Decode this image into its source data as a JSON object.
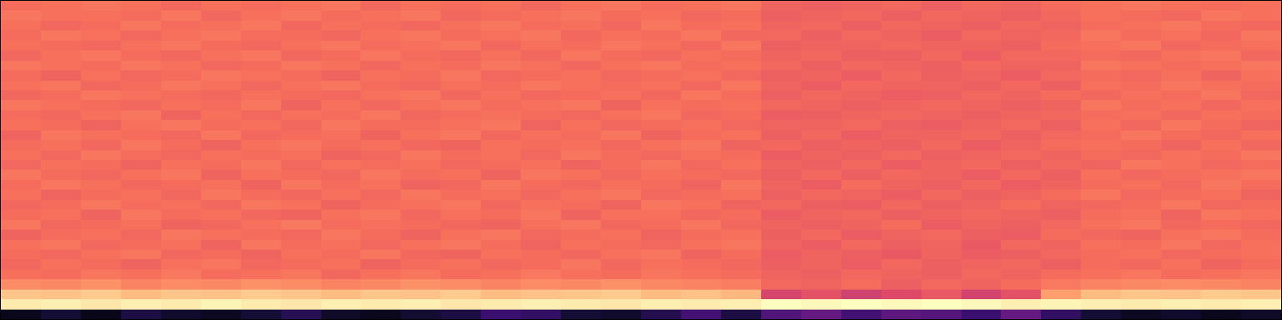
{
  "chart_data": {
    "type": "heatmap",
    "tick_labels": false,
    "color_range": [
      0,
      1
    ],
    "z": [
      [
        0.05,
        0.1,
        0.04,
        0.12,
        0.08,
        0.06,
        0.1,
        0.15,
        0.07,
        0.05,
        0.09,
        0.12,
        0.2,
        0.18,
        0.1,
        0.08,
        0.14,
        0.22,
        0.12,
        0.25,
        0.3,
        0.22,
        0.28,
        0.26,
        0.2,
        0.3,
        0.18,
        0.1,
        0.06,
        0.08,
        0.05,
        0.07
      ],
      [
        0.96,
        0.97,
        0.95,
        0.97,
        0.96,
        0.98,
        0.96,
        0.95,
        0.97,
        0.96,
        0.97,
        0.95,
        0.96,
        0.97,
        0.96,
        0.95,
        0.97,
        0.96,
        0.97,
        1.0,
        0.99,
        1.0,
        0.99,
        1.0,
        0.99,
        0.97,
        0.98,
        0.97,
        0.96,
        0.97,
        0.96,
        0.97
      ],
      [
        0.88,
        0.87,
        0.89,
        0.86,
        0.88,
        0.87,
        0.89,
        0.88,
        0.86,
        0.88,
        0.87,
        0.89,
        0.86,
        0.87,
        0.88,
        0.89,
        0.86,
        0.87,
        0.85,
        0.58,
        0.62,
        0.56,
        0.6,
        0.64,
        0.57,
        0.62,
        0.8,
        0.86,
        0.88,
        0.87,
        0.89,
        0.88
      ],
      [
        0.76,
        0.75,
        0.77,
        0.74,
        0.76,
        0.75,
        0.77,
        0.76,
        0.74,
        0.75,
        0.77,
        0.76,
        0.74,
        0.76,
        0.75,
        0.77,
        0.75,
        0.74,
        0.73,
        0.68,
        0.67,
        0.69,
        0.66,
        0.68,
        0.67,
        0.69,
        0.72,
        0.74,
        0.75,
        0.76,
        0.75,
        0.74
      ],
      [
        0.7,
        0.69,
        0.71,
        0.7,
        0.72,
        0.69,
        0.7,
        0.71,
        0.68,
        0.7,
        0.71,
        0.69,
        0.7,
        0.72,
        0.7,
        0.69,
        0.71,
        0.7,
        0.69,
        0.67,
        0.66,
        0.68,
        0.67,
        0.66,
        0.68,
        0.67,
        0.69,
        0.7,
        0.71,
        0.69,
        0.7,
        0.71
      ],
      [
        0.68,
        0.7,
        0.69,
        0.67,
        0.7,
        0.71,
        0.68,
        0.69,
        0.7,
        0.67,
        0.69,
        0.7,
        0.68,
        0.69,
        0.71,
        0.68,
        0.7,
        0.69,
        0.68,
        0.66,
        0.67,
        0.65,
        0.68,
        0.66,
        0.67,
        0.68,
        0.66,
        0.69,
        0.68,
        0.7,
        0.67,
        0.69
      ],
      [
        0.69,
        0.68,
        0.7,
        0.71,
        0.68,
        0.69,
        0.67,
        0.7,
        0.69,
        0.71,
        0.68,
        0.67,
        0.7,
        0.69,
        0.68,
        0.7,
        0.71,
        0.67,
        0.69,
        0.65,
        0.67,
        0.66,
        0.64,
        0.67,
        0.65,
        0.66,
        0.68,
        0.69,
        0.7,
        0.68,
        0.69,
        0.7
      ],
      [
        0.7,
        0.71,
        0.68,
        0.69,
        0.7,
        0.67,
        0.71,
        0.69,
        0.7,
        0.68,
        0.7,
        0.71,
        0.69,
        0.67,
        0.7,
        0.69,
        0.68,
        0.7,
        0.71,
        0.67,
        0.65,
        0.68,
        0.66,
        0.67,
        0.64,
        0.68,
        0.67,
        0.7,
        0.69,
        0.71,
        0.68,
        0.7
      ],
      [
        0.67,
        0.69,
        0.7,
        0.68,
        0.71,
        0.7,
        0.69,
        0.68,
        0.71,
        0.69,
        0.67,
        0.7,
        0.71,
        0.68,
        0.69,
        0.7,
        0.67,
        0.69,
        0.7,
        0.66,
        0.68,
        0.65,
        0.67,
        0.68,
        0.66,
        0.65,
        0.69,
        0.68,
        0.67,
        0.7,
        0.71,
        0.69
      ],
      [
        0.71,
        0.68,
        0.69,
        0.7,
        0.67,
        0.68,
        0.7,
        0.72,
        0.69,
        0.7,
        0.69,
        0.68,
        0.67,
        0.7,
        0.71,
        0.68,
        0.69,
        0.71,
        0.68,
        0.67,
        0.66,
        0.67,
        0.69,
        0.65,
        0.67,
        0.66,
        0.68,
        0.7,
        0.71,
        0.68,
        0.69,
        0.68
      ],
      [
        0.69,
        0.7,
        0.67,
        0.71,
        0.69,
        0.7,
        0.68,
        0.67,
        0.7,
        0.71,
        0.68,
        0.7,
        0.69,
        0.71,
        0.67,
        0.7,
        0.7,
        0.68,
        0.69,
        0.65,
        0.67,
        0.68,
        0.66,
        0.67,
        0.68,
        0.67,
        0.66,
        0.69,
        0.7,
        0.67,
        0.71,
        0.7
      ],
      [
        0.68,
        0.69,
        0.71,
        0.69,
        0.7,
        0.68,
        0.71,
        0.7,
        0.67,
        0.69,
        0.7,
        0.71,
        0.68,
        0.7,
        0.69,
        0.67,
        0.71,
        0.7,
        0.67,
        0.68,
        0.66,
        0.65,
        0.68,
        0.66,
        0.67,
        0.69,
        0.67,
        0.68,
        0.69,
        0.71,
        0.68,
        0.69
      ],
      [
        0.7,
        0.67,
        0.69,
        0.7,
        0.68,
        0.71,
        0.69,
        0.68,
        0.7,
        0.68,
        0.71,
        0.69,
        0.7,
        0.68,
        0.7,
        0.71,
        0.68,
        0.69,
        0.7,
        0.66,
        0.68,
        0.67,
        0.65,
        0.68,
        0.66,
        0.67,
        0.69,
        0.71,
        0.68,
        0.69,
        0.7,
        0.67
      ],
      [
        0.69,
        0.71,
        0.7,
        0.68,
        0.69,
        0.7,
        0.67,
        0.71,
        0.69,
        0.7,
        0.67,
        0.68,
        0.71,
        0.69,
        0.68,
        0.7,
        0.69,
        0.67,
        0.71,
        0.67,
        0.65,
        0.69,
        0.67,
        0.66,
        0.68,
        0.65,
        0.67,
        0.69,
        0.7,
        0.68,
        0.71,
        0.69
      ],
      [
        0.71,
        0.69,
        0.68,
        0.7,
        0.71,
        0.67,
        0.7,
        0.69,
        0.68,
        0.71,
        0.69,
        0.7,
        0.67,
        0.71,
        0.7,
        0.68,
        0.7,
        0.69,
        0.68,
        0.66,
        0.68,
        0.66,
        0.68,
        0.67,
        0.65,
        0.68,
        0.66,
        0.7,
        0.68,
        0.69,
        0.7,
        0.71
      ],
      [
        0.68,
        0.7,
        0.69,
        0.67,
        0.7,
        0.69,
        0.71,
        0.68,
        0.7,
        0.69,
        0.7,
        0.68,
        0.69,
        0.7,
        0.67,
        0.69,
        0.71,
        0.68,
        0.7,
        0.67,
        0.66,
        0.68,
        0.65,
        0.67,
        0.68,
        0.66,
        0.68,
        0.67,
        0.71,
        0.7,
        0.68,
        0.69
      ],
      [
        0.7,
        0.68,
        0.71,
        0.69,
        0.68,
        0.7,
        0.69,
        0.7,
        0.67,
        0.68,
        0.71,
        0.69,
        0.7,
        0.68,
        0.71,
        0.69,
        0.68,
        0.7,
        0.69,
        0.65,
        0.67,
        0.66,
        0.68,
        0.66,
        0.67,
        0.68,
        0.67,
        0.69,
        0.68,
        0.7,
        0.69,
        0.71
      ],
      [
        0.69,
        0.7,
        0.68,
        0.71,
        0.69,
        0.67,
        0.7,
        0.71,
        0.69,
        0.7,
        0.68,
        0.67,
        0.7,
        0.69,
        0.7,
        0.68,
        0.7,
        0.71,
        0.67,
        0.68,
        0.66,
        0.67,
        0.66,
        0.68,
        0.65,
        0.67,
        0.69,
        0.7,
        0.69,
        0.67,
        0.7,
        0.68
      ],
      [
        0.67,
        0.71,
        0.7,
        0.69,
        0.68,
        0.71,
        0.68,
        0.69,
        0.7,
        0.67,
        0.7,
        0.71,
        0.68,
        0.7,
        0.69,
        0.71,
        0.67,
        0.69,
        0.7,
        0.66,
        0.68,
        0.65,
        0.67,
        0.67,
        0.68,
        0.66,
        0.68,
        0.69,
        0.71,
        0.69,
        0.68,
        0.7
      ],
      [
        0.7,
        0.69,
        0.67,
        0.7,
        0.71,
        0.69,
        0.7,
        0.68,
        0.71,
        0.69,
        0.69,
        0.7,
        0.71,
        0.67,
        0.7,
        0.68,
        0.69,
        0.7,
        0.68,
        0.67,
        0.67,
        0.68,
        0.66,
        0.65,
        0.67,
        0.68,
        0.66,
        0.7,
        0.68,
        0.71,
        0.69,
        0.67
      ],
      [
        0.69,
        0.68,
        0.7,
        0.71,
        0.67,
        0.7,
        0.68,
        0.7,
        0.69,
        0.71,
        0.68,
        0.69,
        0.7,
        0.69,
        0.68,
        0.7,
        0.71,
        0.68,
        0.69,
        0.65,
        0.66,
        0.67,
        0.68,
        0.67,
        0.66,
        0.67,
        0.68,
        0.69,
        0.7,
        0.68,
        0.7,
        0.69
      ],
      [
        0.71,
        0.7,
        0.69,
        0.68,
        0.7,
        0.69,
        0.71,
        0.67,
        0.7,
        0.68,
        0.7,
        0.71,
        0.69,
        0.7,
        0.71,
        0.67,
        0.7,
        0.69,
        0.7,
        0.68,
        0.67,
        0.66,
        0.67,
        0.68,
        0.67,
        0.66,
        0.67,
        0.71,
        0.69,
        0.7,
        0.68,
        0.7
      ],
      [
        0.68,
        0.69,
        0.71,
        0.7,
        0.69,
        0.68,
        0.7,
        0.69,
        0.68,
        0.7,
        0.71,
        0.68,
        0.7,
        0.68,
        0.69,
        0.7,
        0.68,
        0.71,
        0.69,
        0.66,
        0.68,
        0.67,
        0.65,
        0.66,
        0.68,
        0.67,
        0.69,
        0.68,
        0.7,
        0.69,
        0.71,
        0.68
      ],
      [
        0.7,
        0.71,
        0.68,
        0.69,
        0.71,
        0.7,
        0.68,
        0.7,
        0.71,
        0.69,
        0.68,
        0.7,
        0.69,
        0.71,
        0.7,
        0.69,
        0.7,
        0.68,
        0.71,
        0.67,
        0.65,
        0.68,
        0.67,
        0.67,
        0.66,
        0.68,
        0.66,
        0.7,
        0.69,
        0.71,
        0.7,
        0.69
      ],
      [
        0.69,
        0.67,
        0.7,
        0.68,
        0.69,
        0.71,
        0.7,
        0.69,
        0.67,
        0.7,
        0.69,
        0.71,
        0.68,
        0.69,
        0.7,
        0.68,
        0.69,
        0.7,
        0.68,
        0.66,
        0.67,
        0.65,
        0.68,
        0.66,
        0.67,
        0.65,
        0.68,
        0.69,
        0.68,
        0.7,
        0.67,
        0.7
      ],
      [
        0.71,
        0.7,
        0.69,
        0.71,
        0.7,
        0.68,
        0.69,
        0.71,
        0.7,
        0.68,
        0.7,
        0.69,
        0.71,
        0.7,
        0.68,
        0.7,
        0.71,
        0.69,
        0.7,
        0.68,
        0.66,
        0.68,
        0.67,
        0.66,
        0.68,
        0.67,
        0.67,
        0.71,
        0.7,
        0.69,
        0.7,
        0.71
      ],
      [
        0.68,
        0.7,
        0.71,
        0.69,
        0.68,
        0.7,
        0.71,
        0.68,
        0.69,
        0.71,
        0.69,
        0.68,
        0.7,
        0.68,
        0.71,
        0.69,
        0.68,
        0.7,
        0.69,
        0.67,
        0.68,
        0.66,
        0.66,
        0.68,
        0.65,
        0.68,
        0.68,
        0.69,
        0.68,
        0.7,
        0.71,
        0.68
      ],
      [
        0.7,
        0.69,
        0.68,
        0.7,
        0.71,
        0.69,
        0.68,
        0.7,
        0.71,
        0.69,
        0.7,
        0.71,
        0.68,
        0.7,
        0.69,
        0.71,
        0.7,
        0.68,
        0.71,
        0.66,
        0.67,
        0.67,
        0.68,
        0.67,
        0.67,
        0.66,
        0.69,
        0.7,
        0.71,
        0.68,
        0.69,
        0.7
      ],
      [
        0.69,
        0.71,
        0.7,
        0.68,
        0.7,
        0.71,
        0.69,
        0.69,
        0.68,
        0.7,
        0.71,
        0.69,
        0.7,
        0.71,
        0.68,
        0.7,
        0.69,
        0.71,
        0.68,
        0.68,
        0.66,
        0.68,
        0.67,
        0.65,
        0.68,
        0.67,
        0.68,
        0.71,
        0.69,
        0.7,
        0.68,
        0.71
      ],
      [
        0.7,
        0.68,
        0.69,
        0.71,
        0.69,
        0.7,
        0.71,
        0.68,
        0.7,
        0.69,
        0.68,
        0.7,
        0.71,
        0.69,
        0.7,
        0.68,
        0.71,
        0.69,
        0.7,
        0.67,
        0.68,
        0.66,
        0.68,
        0.67,
        0.66,
        0.68,
        0.67,
        0.69,
        0.7,
        0.71,
        0.69,
        0.68
      ],
      [
        0.71,
        0.7,
        0.7,
        0.69,
        0.71,
        0.68,
        0.7,
        0.71,
        0.69,
        0.7,
        0.71,
        0.68,
        0.69,
        0.7,
        0.71,
        0.69,
        0.7,
        0.68,
        0.69,
        0.66,
        0.67,
        0.68,
        0.66,
        0.68,
        0.67,
        0.66,
        0.68,
        0.7,
        0.69,
        0.68,
        0.71,
        0.7
      ],
      [
        0.69,
        0.7,
        0.71,
        0.7,
        0.68,
        0.7,
        0.69,
        0.7,
        0.71,
        0.68,
        0.7,
        0.69,
        0.7,
        0.68,
        0.7,
        0.71,
        0.69,
        0.7,
        0.71,
        0.67,
        0.66,
        0.67,
        0.68,
        0.66,
        0.68,
        0.67,
        0.69,
        0.7,
        0.71,
        0.7,
        0.69,
        0.7
      ]
    ]
  }
}
